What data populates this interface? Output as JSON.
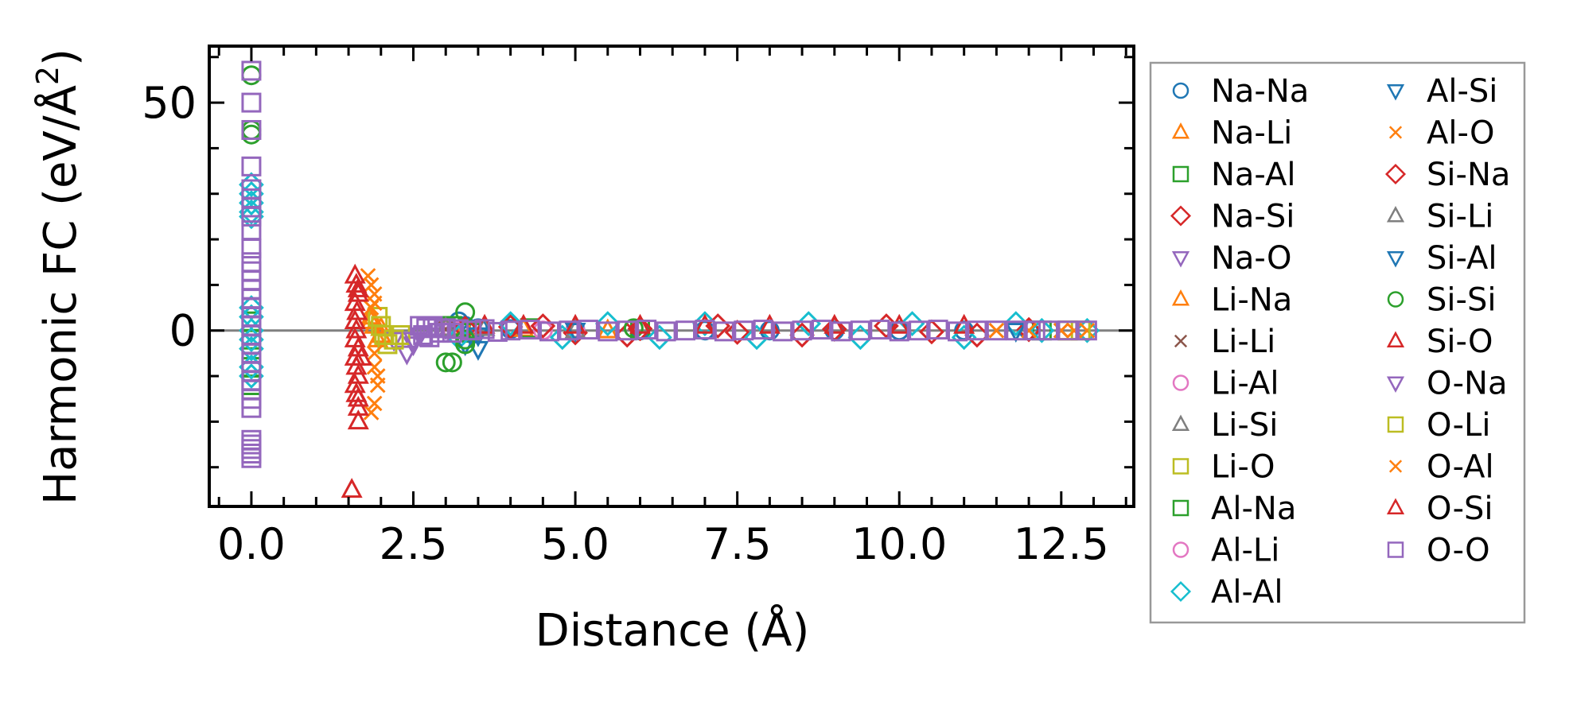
{
  "chart_data": {
    "type": "scatter",
    "title": "",
    "xlabel": "Distance (Å)",
    "ylabel_main": "Harmonic FC (eV/Å",
    "ylabel_sup": "2",
    "ylabel_end": ")",
    "xlim": [
      -0.65,
      13.62
    ],
    "ylim": [
      -38.6,
      62.4
    ],
    "x_major_ticks": [
      0.0,
      2.5,
      5.0,
      7.5,
      10.0,
      12.5
    ],
    "x_tick_labels": [
      "0.0",
      "2.5",
      "5.0",
      "7.5",
      "10.0",
      "12.5"
    ],
    "x_minor_step": 0.5,
    "y_major_ticks": [
      0,
      50
    ],
    "y_tick_labels": [
      "0",
      "50"
    ],
    "y_minor_step": 10,
    "grid": false,
    "zero_line": {
      "y": 0,
      "color": "#808080"
    },
    "legend": {
      "placement": "outside-right",
      "columns": 2
    },
    "series": [
      {
        "name": "Na-Na",
        "marker": "circle",
        "color": "#1f77b4",
        "points": [
          [
            3.2,
            2
          ],
          [
            3.3,
            1
          ],
          [
            3.5,
            0.5
          ],
          [
            4.0,
            0.3
          ],
          [
            5.0,
            0.1
          ],
          [
            6.0,
            0
          ],
          [
            7.0,
            0
          ],
          [
            8.0,
            0
          ],
          [
            9.0,
            0
          ],
          [
            10.0,
            0
          ],
          [
            11.0,
            0
          ],
          [
            12.0,
            0
          ]
        ]
      },
      {
        "name": "Na-Li",
        "marker": "triangle-up",
        "color": "#ff7f0e",
        "points": [
          [
            1.85,
            3
          ],
          [
            1.9,
            1
          ],
          [
            1.95,
            -2
          ],
          [
            2.0,
            0.5
          ],
          [
            3.3,
            0.5
          ],
          [
            4.2,
            0.3
          ],
          [
            5.5,
            0
          ]
        ]
      },
      {
        "name": "Na-Al",
        "marker": "square",
        "color": "#2ca02c",
        "points": [
          [
            3.1,
            1
          ],
          [
            3.4,
            -0.5
          ],
          [
            4.3,
            0.5
          ],
          [
            6.0,
            0.2
          ],
          [
            12.2,
            0
          ]
        ]
      },
      {
        "name": "Na-Si",
        "marker": "diamond",
        "color": "#d62728",
        "points": [
          [
            3.3,
            0.5
          ],
          [
            4.0,
            0.8
          ],
          [
            5.0,
            -0.5
          ],
          [
            6.0,
            0.4
          ],
          [
            7.5,
            -0.4
          ],
          [
            9.0,
            0.3
          ],
          [
            10.5,
            -0.3
          ],
          [
            12.0,
            0.2
          ]
        ]
      },
      {
        "name": "Na-O",
        "marker": "triangle-down",
        "color": "#9467bd",
        "points": [
          [
            2.2,
            -2
          ],
          [
            2.4,
            -5
          ],
          [
            2.5,
            -3
          ],
          [
            2.6,
            -1
          ],
          [
            3.0,
            0.5
          ]
        ]
      },
      {
        "name": "Li-Na",
        "marker": "triangle-up",
        "color": "#ff7f0e",
        "points": [
          [
            1.85,
            2
          ],
          [
            2.0,
            -1
          ]
        ]
      },
      {
        "name": "Li-Li",
        "marker": "x",
        "color": "#8c564b",
        "points": [
          [
            3.0,
            0.3
          ],
          [
            12.5,
            0
          ]
        ]
      },
      {
        "name": "Li-Al",
        "marker": "circle",
        "color": "#e377c2",
        "points": [
          [
            3.1,
            0.3
          ],
          [
            5.0,
            0
          ]
        ]
      },
      {
        "name": "Li-Si",
        "marker": "triangle-up",
        "color": "#7f7f7f",
        "points": [
          [
            3.0,
            0.5
          ],
          [
            5.0,
            0
          ]
        ]
      },
      {
        "name": "Li-O",
        "marker": "square",
        "color": "#bcbd22",
        "points": [
          [
            1.95,
            3
          ],
          [
            2.0,
            1
          ],
          [
            2.05,
            -1
          ],
          [
            2.1,
            -3
          ],
          [
            2.2,
            -2
          ],
          [
            2.3,
            -1
          ],
          [
            12.6,
            0
          ]
        ]
      },
      {
        "name": "Al-Na",
        "marker": "square",
        "color": "#2ca02c",
        "points": [
          [
            0,
            2
          ],
          [
            0,
            -2
          ],
          [
            0,
            -8
          ],
          [
            0,
            -12
          ]
        ]
      },
      {
        "name": "Al-Li",
        "marker": "circle",
        "color": "#e377c2",
        "points": [
          [
            4.5,
            0
          ]
        ]
      },
      {
        "name": "Al-Al",
        "marker": "diamond",
        "color": "#17becf",
        "points": [
          [
            0,
            32
          ],
          [
            0,
            30
          ],
          [
            0,
            28
          ],
          [
            0,
            26
          ],
          [
            0,
            25
          ],
          [
            0,
            5
          ],
          [
            0,
            3
          ],
          [
            0,
            0
          ],
          [
            0,
            -2
          ],
          [
            0,
            -4
          ],
          [
            0,
            -8
          ],
          [
            0,
            -10
          ],
          [
            3.2,
            -1.5
          ],
          [
            4.0,
            1.5
          ],
          [
            4.8,
            -1.5
          ],
          [
            5.5,
            1.5
          ],
          [
            6.3,
            -1.5
          ],
          [
            7.0,
            1.5
          ],
          [
            7.8,
            -1.5
          ],
          [
            8.6,
            1.5
          ],
          [
            9.4,
            -1.5
          ],
          [
            10.2,
            1.5
          ],
          [
            11.0,
            -1.5
          ],
          [
            11.8,
            1.5
          ],
          [
            12.2,
            0
          ],
          [
            12.9,
            0
          ]
        ]
      },
      {
        "name": "Al-Si",
        "marker": "triangle-down",
        "color": "#1f77b4",
        "points": [
          [
            3.3,
            -3
          ],
          [
            3.5,
            -1
          ],
          [
            5.0,
            0
          ]
        ]
      },
      {
        "name": "Al-O",
        "marker": "x",
        "color": "#ff7f0e",
        "points": [
          [
            1.8,
            12
          ],
          [
            1.85,
            10
          ],
          [
            1.9,
            8
          ],
          [
            1.85,
            5
          ],
          [
            1.9,
            -5
          ],
          [
            1.9,
            -8
          ],
          [
            1.95,
            -12
          ],
          [
            1.9,
            -16
          ],
          [
            1.85,
            -18
          ],
          [
            11.5,
            0
          ],
          [
            12.0,
            0
          ],
          [
            12.5,
            0
          ],
          [
            12.9,
            0
          ]
        ]
      },
      {
        "name": "Si-Na",
        "marker": "diamond",
        "color": "#d62728",
        "points": [
          [
            4.5,
            1
          ],
          [
            5.8,
            -1
          ],
          [
            7.2,
            1
          ],
          [
            8.5,
            -1
          ],
          [
            9.8,
            1
          ],
          [
            11.2,
            -1
          ]
        ]
      },
      {
        "name": "Si-Li",
        "marker": "triangle-up",
        "color": "#7f7f7f",
        "points": [
          [
            3.6,
            0.5
          ]
        ]
      },
      {
        "name": "Si-Al",
        "marker": "triangle-down",
        "color": "#1f77b4",
        "points": [
          [
            3.5,
            -4
          ],
          [
            11.8,
            0
          ]
        ]
      },
      {
        "name": "Si-Si",
        "marker": "circle",
        "color": "#2ca02c",
        "points": [
          [
            0,
            56
          ],
          [
            0,
            44
          ],
          [
            0,
            43
          ],
          [
            3.3,
            4
          ],
          [
            3.3,
            -2
          ],
          [
            3.0,
            -7
          ],
          [
            3.1,
            -7
          ],
          [
            3.3,
            -3
          ],
          [
            5.9,
            0.5
          ]
        ]
      },
      {
        "name": "Si-O",
        "marker": "triangle-up",
        "color": "#d62728",
        "points": [
          [
            1.6,
            12
          ],
          [
            1.62,
            10
          ],
          [
            1.65,
            8
          ],
          [
            1.6,
            6
          ],
          [
            1.63,
            4
          ],
          [
            1.6,
            2
          ],
          [
            1.62,
            0
          ],
          [
            1.6,
            -2
          ],
          [
            1.65,
            -4
          ],
          [
            1.6,
            -6
          ],
          [
            1.62,
            -8
          ],
          [
            1.65,
            -10
          ],
          [
            1.6,
            -12
          ],
          [
            1.62,
            -14
          ],
          [
            1.65,
            -17
          ],
          [
            1.65,
            -20
          ],
          [
            1.55,
            -35
          ],
          [
            3.6,
            1
          ],
          [
            4.2,
            1
          ],
          [
            5.0,
            1
          ],
          [
            6.0,
            1
          ],
          [
            7.0,
            1
          ],
          [
            8.0,
            1
          ],
          [
            9.0,
            1
          ],
          [
            10.0,
            1
          ],
          [
            11.0,
            1
          ]
        ]
      },
      {
        "name": "O-Na",
        "marker": "triangle-down",
        "color": "#9467bd",
        "points": [
          [
            2.5,
            -2
          ]
        ]
      },
      {
        "name": "O-Li",
        "marker": "square",
        "color": "#bcbd22",
        "points": [
          [
            12.6,
            0
          ],
          [
            12.8,
            0
          ]
        ]
      },
      {
        "name": "O-Al",
        "marker": "x",
        "color": "#ff7f0e",
        "points": [
          [
            1.9,
            6
          ],
          [
            1.95,
            -10
          ],
          [
            12.7,
            0
          ]
        ]
      },
      {
        "name": "O-Si",
        "marker": "triangle-up",
        "color": "#d62728",
        "points": [
          [
            1.65,
            9
          ],
          [
            1.7,
            -6
          ],
          [
            1.65,
            -15
          ]
        ]
      },
      {
        "name": "O-O",
        "marker": "square",
        "color": "#9467bd",
        "points": [
          [
            0,
            57
          ],
          [
            0,
            50
          ],
          [
            0,
            44
          ],
          [
            0,
            36
          ],
          [
            0,
            31
          ],
          [
            0,
            29
          ],
          [
            0,
            27
          ],
          [
            0,
            25
          ],
          [
            0,
            22
          ],
          [
            0,
            18
          ],
          [
            0,
            15
          ],
          [
            0,
            13
          ],
          [
            0,
            11
          ],
          [
            0,
            9
          ],
          [
            0,
            7
          ],
          [
            0,
            5
          ],
          [
            0,
            3
          ],
          [
            0,
            1
          ],
          [
            0,
            -1
          ],
          [
            0,
            -3
          ],
          [
            0,
            -5
          ],
          [
            0,
            -7
          ],
          [
            0,
            -9
          ],
          [
            0,
            -11
          ],
          [
            0,
            -13
          ],
          [
            0,
            -15
          ],
          [
            0,
            -17
          ],
          [
            0,
            -24
          ],
          [
            0,
            -25
          ],
          [
            0,
            -26
          ],
          [
            0,
            -27
          ],
          [
            0,
            -28
          ],
          [
            2.6,
            1
          ],
          [
            2.65,
            -1
          ],
          [
            2.7,
            0.5
          ],
          [
            2.75,
            -1.5
          ],
          [
            2.8,
            1
          ],
          [
            2.9,
            -0.5
          ],
          [
            3.0,
            0.5
          ],
          [
            3.1,
            -0.5
          ],
          [
            3.2,
            0.3
          ],
          [
            3.4,
            0
          ],
          [
            3.6,
            0.3
          ],
          [
            3.8,
            -0.3
          ],
          [
            4.0,
            0
          ],
          [
            4.3,
            0.2
          ],
          [
            4.6,
            -0.2
          ],
          [
            4.9,
            0
          ],
          [
            5.2,
            0.2
          ],
          [
            5.5,
            -0.2
          ],
          [
            5.8,
            0
          ],
          [
            6.1,
            0.2
          ],
          [
            6.4,
            -0.2
          ],
          [
            6.7,
            0
          ],
          [
            7.0,
            0.2
          ],
          [
            7.3,
            -0.2
          ],
          [
            7.6,
            0
          ],
          [
            7.9,
            0.2
          ],
          [
            8.2,
            -0.2
          ],
          [
            8.5,
            0
          ],
          [
            8.8,
            0.2
          ],
          [
            9.1,
            -0.2
          ],
          [
            9.4,
            0
          ],
          [
            9.7,
            0.2
          ],
          [
            10.0,
            -0.2
          ],
          [
            10.3,
            0
          ],
          [
            10.6,
            0.2
          ],
          [
            10.9,
            -0.2
          ],
          [
            11.2,
            0
          ],
          [
            11.5,
            0
          ],
          [
            11.8,
            0
          ],
          [
            12.1,
            0
          ],
          [
            12.3,
            0
          ],
          [
            12.6,
            0
          ],
          [
            12.9,
            0
          ]
        ]
      }
    ]
  }
}
